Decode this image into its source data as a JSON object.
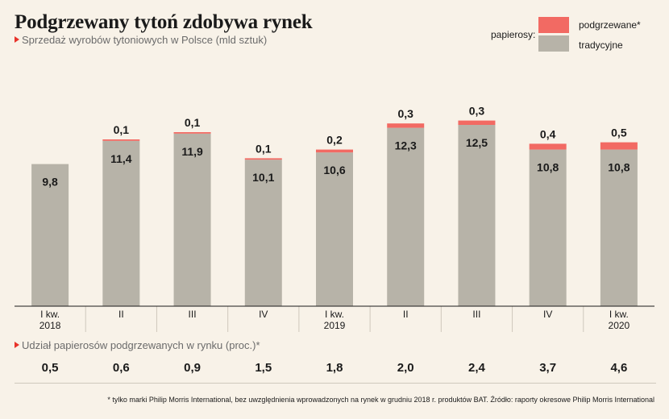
{
  "header": {
    "title": "Podgrzewany tytoń zdobywa rynek",
    "subtitle": "Sprzedaż wyrobów tytoniowych w Polsce (mld sztuk)"
  },
  "legend": {
    "caption": "papierosy:",
    "heated_label": "podgrzewane*",
    "traditional_label": "tradycyjne"
  },
  "colors": {
    "heated": "#f26a63",
    "traditional": "#b7b3a8",
    "accent": "#e8332a",
    "background": "#f8f2e8"
  },
  "chart_data": {
    "type": "bar",
    "stacked": true,
    "title": "Podgrzewany tytoń zdobywa rynek",
    "subtitle": "Sprzedaż wyrobów tytoniowych w Polsce (mld sztuk)",
    "categories": [
      [
        "I kw.",
        "2018"
      ],
      [
        "II",
        ""
      ],
      [
        "III",
        ""
      ],
      [
        "IV",
        ""
      ],
      [
        "I kw.",
        "2019"
      ],
      [
        "II",
        ""
      ],
      [
        "III",
        ""
      ],
      [
        "IV",
        ""
      ],
      [
        "I kw.",
        "2020"
      ]
    ],
    "series": [
      {
        "name": "tradycyjne",
        "values": [
          9.8,
          11.4,
          11.9,
          10.1,
          10.6,
          12.3,
          12.5,
          10.8,
          10.8
        ],
        "labels": [
          "9,8",
          "11,4",
          "11,9",
          "10,1",
          "10,6",
          "12,3",
          "12,5",
          "10,8",
          "10,8"
        ]
      },
      {
        "name": "podgrzewane*",
        "values": [
          0,
          0.1,
          0.1,
          0.1,
          0.2,
          0.3,
          0.3,
          0.4,
          0.5
        ],
        "labels": [
          "",
          "0,1",
          "0,1",
          "0,1",
          "0,2",
          "0,3",
          "0,3",
          "0,4",
          "0,5"
        ]
      }
    ],
    "ylim": [
      0,
      14
    ],
    "grid": false,
    "legend_position": "top-right"
  },
  "share": {
    "title": "Udział papierosów podgrzewanych w rynku (proc.)*",
    "values": [
      "0,5",
      "0,6",
      "0,9",
      "1,5",
      "1,8",
      "2,0",
      "2,4",
      "3,7",
      "4,6"
    ]
  },
  "footnote": "* tylko marki Philip Morris International, bez uwzględnienia wprowadzonych na rynek w grudniu 2018 r. produktów BAT. Źródło: raporty okresowe Philip Morris International"
}
